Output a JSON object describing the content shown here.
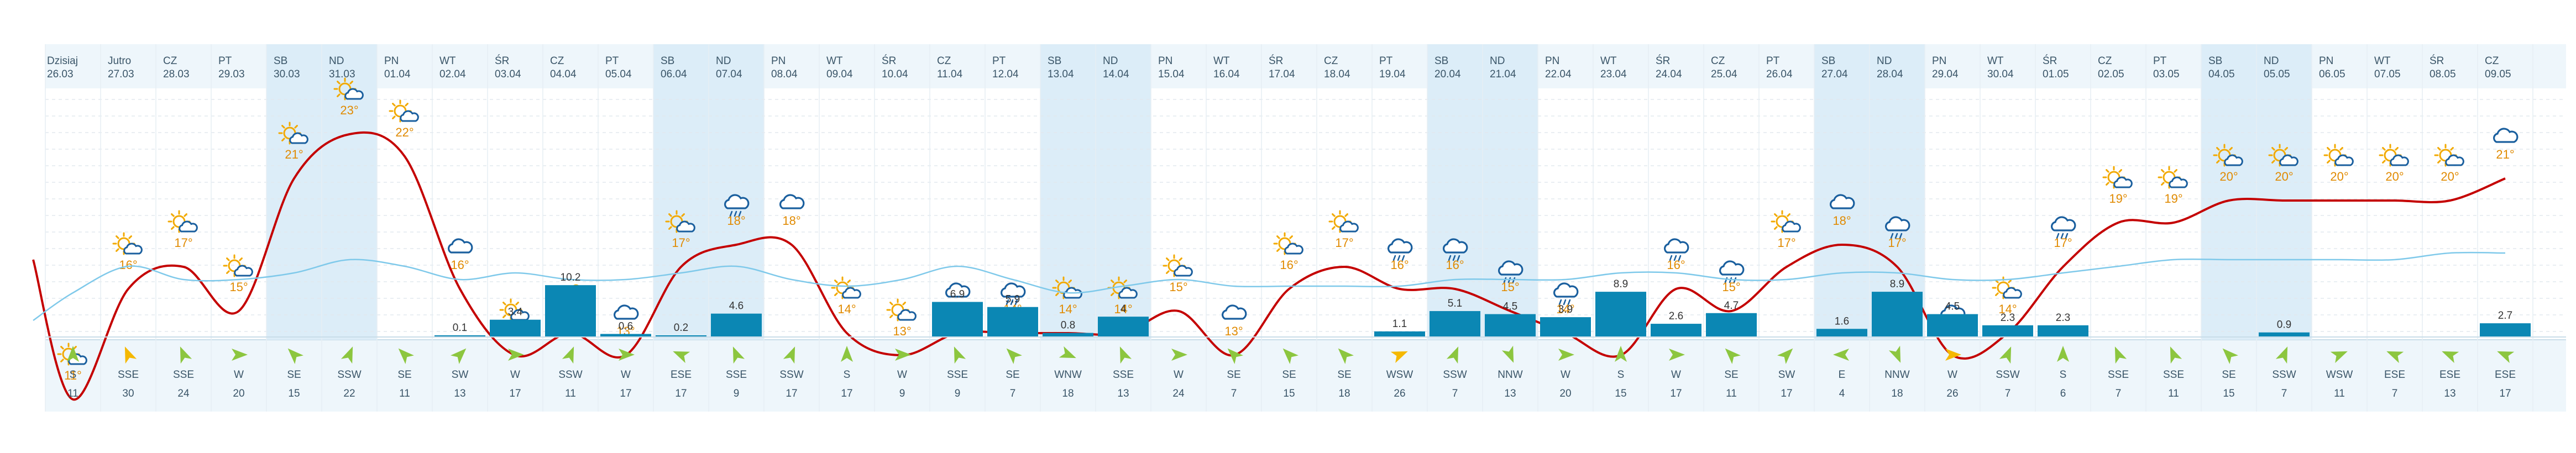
{
  "chart_data": {
    "type": "line",
    "days": [
      {
        "name": "Dzisiaj",
        "date": "26.03",
        "weekend": false,
        "icon": "sun-cloud-icon",
        "temp": 11,
        "precip": null,
        "wind_dir": "S",
        "wind_speed": 11
      },
      {
        "name": "Jutro",
        "date": "27.03",
        "weekend": false,
        "icon": "sun-cloud-icon",
        "temp": 16,
        "precip": null,
        "wind_dir": "SSE",
        "wind_speed": 30
      },
      {
        "name": "CZ",
        "date": "28.03",
        "weekend": false,
        "icon": "sun-cloud-icon",
        "temp": 17,
        "precip": null,
        "wind_dir": "SSE",
        "wind_speed": 24
      },
      {
        "name": "PT",
        "date": "29.03",
        "weekend": false,
        "icon": "sun-cloud-icon",
        "temp": 15,
        "precip": null,
        "wind_dir": "W",
        "wind_speed": 20
      },
      {
        "name": "SB",
        "date": "30.03",
        "weekend": true,
        "icon": "sun-cloud-icon",
        "temp": 21,
        "precip": null,
        "wind_dir": "SE",
        "wind_speed": 15
      },
      {
        "name": "ND",
        "date": "31.03",
        "weekend": true,
        "icon": "sun-cloud-icon",
        "temp": 23,
        "precip": null,
        "wind_dir": "SSW",
        "wind_speed": 22
      },
      {
        "name": "PN",
        "date": "01.04",
        "weekend": false,
        "icon": "sun-cloud-icon",
        "temp": 22,
        "precip": null,
        "wind_dir": "SE",
        "wind_speed": 11
      },
      {
        "name": "WT",
        "date": "02.04",
        "weekend": false,
        "icon": "cloud-icon",
        "temp": 16,
        "precip": 0.1,
        "wind_dir": "SW",
        "wind_speed": 13
      },
      {
        "name": "ŚR",
        "date": "03.04",
        "weekend": false,
        "icon": "sun-cloud-rain-icon",
        "temp": 13,
        "precip": 3.4,
        "wind_dir": "W",
        "wind_speed": 17
      },
      {
        "name": "CZ",
        "date": "04.04",
        "weekend": false,
        "icon": "cloud-sun-small-icon",
        "temp": 14,
        "precip": 10.2,
        "wind_dir": "SSW",
        "wind_speed": 11
      },
      {
        "name": "PT",
        "date": "05.04",
        "weekend": false,
        "icon": "cloud-icon",
        "temp": 13,
        "precip": 0.6,
        "wind_dir": "W",
        "wind_speed": 17
      },
      {
        "name": "SB",
        "date": "06.04",
        "weekend": true,
        "icon": "sun-cloud-icon",
        "temp": 17,
        "precip": 0.2,
        "wind_dir": "ESE",
        "wind_speed": 17
      },
      {
        "name": "ND",
        "date": "07.04",
        "weekend": true,
        "icon": "cloud-rain-icon",
        "temp": 18,
        "precip": 4.6,
        "wind_dir": "SSE",
        "wind_speed": 9
      },
      {
        "name": "PN",
        "date": "08.04",
        "weekend": false,
        "icon": "cloud-icon",
        "temp": 18,
        "precip": null,
        "wind_dir": "SSW",
        "wind_speed": 17
      },
      {
        "name": "WT",
        "date": "09.04",
        "weekend": false,
        "icon": "sun-cloud-icon",
        "temp": 14,
        "precip": null,
        "wind_dir": "S",
        "wind_speed": 17
      },
      {
        "name": "ŚR",
        "date": "10.04",
        "weekend": false,
        "icon": "sun-cloud-icon",
        "temp": 13,
        "precip": null,
        "wind_dir": "W",
        "wind_speed": 9
      },
      {
        "name": "CZ",
        "date": "11.04",
        "weekend": false,
        "icon": "cloud-icon",
        "temp": 14,
        "precip": 6.9,
        "wind_dir": "SSE",
        "wind_speed": 9
      },
      {
        "name": "PT",
        "date": "12.04",
        "weekend": false,
        "icon": "cloud-rain-icon",
        "temp": 14,
        "precip": 5.9,
        "wind_dir": "SE",
        "wind_speed": 7
      },
      {
        "name": "SB",
        "date": "13.04",
        "weekend": true,
        "icon": "sun-cloud-icon",
        "temp": 14,
        "precip": 0.8,
        "wind_dir": "WNW",
        "wind_speed": 18
      },
      {
        "name": "ND",
        "date": "14.04",
        "weekend": true,
        "icon": "sun-cloud-icon",
        "temp": 14,
        "precip": 4.0,
        "wind_dir": "SSE",
        "wind_speed": 13
      },
      {
        "name": "PN",
        "date": "15.04",
        "weekend": false,
        "icon": "sun-cloud-icon",
        "temp": 15,
        "precip": null,
        "wind_dir": "W",
        "wind_speed": 24
      },
      {
        "name": "WT",
        "date": "16.04",
        "weekend": false,
        "icon": "cloud-icon",
        "temp": 13,
        "precip": null,
        "wind_dir": "SE",
        "wind_speed": 7
      },
      {
        "name": "ŚR",
        "date": "17.04",
        "weekend": false,
        "icon": "sun-cloud-icon",
        "temp": 16,
        "precip": null,
        "wind_dir": "SE",
        "wind_speed": 15
      },
      {
        "name": "CZ",
        "date": "18.04",
        "weekend": false,
        "icon": "sun-cloud-icon",
        "temp": 17,
        "precip": null,
        "wind_dir": "SE",
        "wind_speed": 18
      },
      {
        "name": "PT",
        "date": "19.04",
        "weekend": false,
        "icon": "cloud-rain-icon",
        "temp": 16,
        "precip": 1.1,
        "wind_dir": "WSW",
        "wind_speed": 26
      },
      {
        "name": "SB",
        "date": "20.04",
        "weekend": true,
        "icon": "cloud-rain-icon",
        "temp": 16,
        "precip": 5.1,
        "wind_dir": "SSW",
        "wind_speed": 7
      },
      {
        "name": "ND",
        "date": "21.04",
        "weekend": true,
        "icon": "cloud-rain-icon",
        "temp": 15,
        "precip": 4.5,
        "wind_dir": "NNW",
        "wind_speed": 13
      },
      {
        "name": "PN",
        "date": "22.04",
        "weekend": false,
        "icon": "cloud-rain-icon",
        "temp": 14,
        "precip": 3.9,
        "wind_dir": "W",
        "wind_speed": 20
      },
      {
        "name": "WT",
        "date": "23.04",
        "weekend": false,
        "icon": "cloud-rain-icon",
        "temp": 13,
        "precip": 8.9,
        "wind_dir": "S",
        "wind_speed": 15
      },
      {
        "name": "ŚR",
        "date": "24.04",
        "weekend": false,
        "icon": "cloud-rain-icon",
        "temp": 16,
        "precip": 2.6,
        "wind_dir": "W",
        "wind_speed": 17
      },
      {
        "name": "CZ",
        "date": "25.04",
        "weekend": false,
        "icon": "cloud-rain-icon",
        "temp": 15,
        "precip": 4.7,
        "wind_dir": "SE",
        "wind_speed": 11
      },
      {
        "name": "PT",
        "date": "26.04",
        "weekend": false,
        "icon": "sun-cloud-icon",
        "temp": 17,
        "precip": null,
        "wind_dir": "SW",
        "wind_speed": 17
      },
      {
        "name": "SB",
        "date": "27.04",
        "weekend": true,
        "icon": "cloud-icon",
        "temp": 18,
        "precip": 1.6,
        "wind_dir": "E",
        "wind_speed": 4
      },
      {
        "name": "ND",
        "date": "28.04",
        "weekend": true,
        "icon": "cloud-rain-icon",
        "temp": 17,
        "precip": 8.9,
        "wind_dir": "NNW",
        "wind_speed": 18
      },
      {
        "name": "PN",
        "date": "29.04",
        "weekend": false,
        "icon": "cloud-rain-icon",
        "temp": 13,
        "precip": 4.5,
        "wind_dir": "W",
        "wind_speed": 26
      },
      {
        "name": "WT",
        "date": "30.04",
        "weekend": false,
        "icon": "sun-cloud-icon",
        "temp": 14,
        "precip": 2.3,
        "wind_dir": "SSW",
        "wind_speed": 7
      },
      {
        "name": "ŚR",
        "date": "01.05",
        "weekend": false,
        "icon": "cloud-rain-icon",
        "temp": 17,
        "precip": 2.3,
        "wind_dir": "S",
        "wind_speed": 6
      },
      {
        "name": "CZ",
        "date": "02.05",
        "weekend": false,
        "icon": "sun-cloud-icon",
        "temp": 19,
        "precip": null,
        "wind_dir": "SSE",
        "wind_speed": 7
      },
      {
        "name": "PT",
        "date": "03.05",
        "weekend": false,
        "icon": "sun-cloud-icon",
        "temp": 19,
        "precip": null,
        "wind_dir": "SSE",
        "wind_speed": 11
      },
      {
        "name": "SB",
        "date": "04.05",
        "weekend": true,
        "icon": "sun-cloud-icon",
        "temp": 20,
        "precip": null,
        "wind_dir": "SE",
        "wind_speed": 15
      },
      {
        "name": "ND",
        "date": "05.05",
        "weekend": true,
        "icon": "sun-cloud-icon",
        "temp": 20,
        "precip": 0.9,
        "wind_dir": "SSW",
        "wind_speed": 7
      },
      {
        "name": "PN",
        "date": "06.05",
        "weekend": false,
        "icon": "sun-cloud-icon",
        "temp": 20,
        "precip": null,
        "wind_dir": "WSW",
        "wind_speed": 11
      },
      {
        "name": "WT",
        "date": "07.05",
        "weekend": false,
        "icon": "sun-cloud-icon",
        "temp": 20,
        "precip": null,
        "wind_dir": "ESE",
        "wind_speed": 7
      },
      {
        "name": "ŚR",
        "date": "08.05",
        "weekend": false,
        "icon": "sun-cloud-icon",
        "temp": 20,
        "precip": null,
        "wind_dir": "ESE",
        "wind_speed": 13
      },
      {
        "name": "CZ",
        "date": "09.05",
        "weekend": false,
        "icon": "cloud-icon",
        "temp": 21,
        "precip": 2.7,
        "wind_dir": "ESE",
        "wind_speed": 17
      }
    ],
    "gust_line": [
      5,
      9,
      7,
      7,
      8,
      10,
      9,
      7,
      8,
      7,
      7,
      8,
      9,
      7,
      6,
      7,
      9,
      7,
      5,
      6,
      7,
      6,
      6,
      6,
      6,
      7,
      7,
      7,
      8,
      8,
      7,
      7,
      8,
      8,
      7,
      7,
      8,
      9,
      10,
      10,
      10,
      10,
      10,
      11,
      11
    ],
    "temp_unit": "°",
    "colors": {
      "temp_line": "#c40000",
      "temp_text": "#e08a00",
      "precip_bar": "#0b87b4",
      "precip_line": "#7fc9ea",
      "weekend_bg": "#dcedf8",
      "header_bg": "#eef6fb",
      "wind_bg": "#eef6fb",
      "arrow_green": "#8cc63f",
      "arrow_orange": "#f5b800",
      "icon_blue": "#1a5f9e",
      "icon_sun": "#f2a900"
    }
  }
}
